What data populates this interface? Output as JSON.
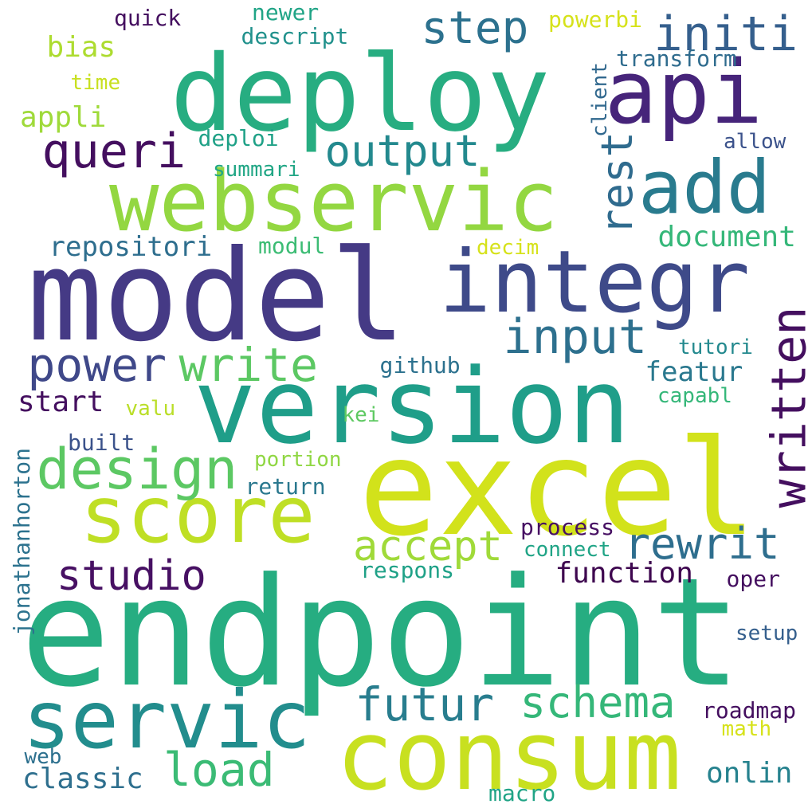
{
  "palette": {
    "deep_purple": "#440154",
    "indigo": "#443983",
    "slate_blue": "#3b528b",
    "steel_blue": "#31688e",
    "teal_blue": "#287c8e",
    "teal": "#21918c",
    "sea_green": "#20a486",
    "green": "#35b779",
    "light_green": "#5ec962",
    "yellow_green": "#90d743",
    "lime": "#c8e020",
    "yellow": "#d6e21b"
  },
  "words": [
    {
      "text": "endpoint",
      "color": "#26ad81"
    },
    {
      "text": "excel",
      "color": "#d2e21b"
    },
    {
      "text": "model",
      "color": "#453a85"
    },
    {
      "text": "version",
      "color": "#1f9e89"
    },
    {
      "text": "deploy",
      "color": "#27ad81"
    },
    {
      "text": "consum",
      "color": "#c8e020"
    },
    {
      "text": "webservic",
      "color": "#93d741"
    },
    {
      "text": "integr",
      "color": "#3e4a89"
    },
    {
      "text": "api",
      "color": "#46247a"
    },
    {
      "text": "servic",
      "color": "#228d8d"
    },
    {
      "text": "score",
      "color": "#bfdf25"
    },
    {
      "text": "add",
      "color": "#297b8e"
    },
    {
      "text": "design",
      "color": "#5cc863"
    },
    {
      "text": "written",
      "color": "#440f5f"
    },
    {
      "text": "step",
      "color": "#2c718e"
    },
    {
      "text": "initi",
      "color": "#355f8d"
    },
    {
      "text": "queri",
      "color": "#440f5f"
    },
    {
      "text": "output",
      "color": "#23898e"
    },
    {
      "text": "rest",
      "color": "#2f6b8e"
    },
    {
      "text": "input",
      "color": "#2d708e"
    },
    {
      "text": "power",
      "color": "#3f4889"
    },
    {
      "text": "write",
      "color": "#5cc863"
    },
    {
      "text": "futur",
      "color": "#287d8e"
    },
    {
      "text": "schema",
      "color": "#35b779"
    },
    {
      "text": "rewrit",
      "color": "#2e6e8e"
    },
    {
      "text": "accept",
      "color": "#a0da39"
    },
    {
      "text": "studio",
      "color": "#471063"
    },
    {
      "text": "load",
      "color": "#3bbb75"
    },
    {
      "text": "function",
      "color": "#3e074f"
    },
    {
      "text": "classic",
      "color": "#2e6f8e"
    },
    {
      "text": "document",
      "color": "#35b779"
    },
    {
      "text": "repositori",
      "color": "#2e6e8e"
    },
    {
      "text": "featur",
      "color": "#2a788e"
    },
    {
      "text": "start",
      "color": "#440f5f"
    },
    {
      "text": "onlin",
      "color": "#26828e"
    },
    {
      "text": "bias",
      "color": "#addc30"
    },
    {
      "text": "appli",
      "color": "#9fda3a"
    },
    {
      "text": "roadmap",
      "color": "#440f5f"
    },
    {
      "text": "jonathanhorton",
      "color": "#2c728e"
    },
    {
      "text": "transform",
      "color": "#2f6c8e"
    },
    {
      "text": "deploi",
      "color": "#1fa187"
    },
    {
      "text": "summari",
      "color": "#21a685"
    },
    {
      "text": "modul",
      "color": "#3cbc74"
    },
    {
      "text": "decim",
      "color": "#d6e21b"
    },
    {
      "text": "github",
      "color": "#2c718e"
    },
    {
      "text": "tutori",
      "color": "#23898e"
    },
    {
      "text": "capabl",
      "color": "#35b779"
    },
    {
      "text": "valu",
      "color": "#bade28"
    },
    {
      "text": "kei",
      "color": "#5ec962"
    },
    {
      "text": "built",
      "color": "#3b528b"
    },
    {
      "text": "portion",
      "color": "#90d743"
    },
    {
      "text": "return",
      "color": "#2a788e"
    },
    {
      "text": "process",
      "color": "#471063"
    },
    {
      "text": "connect",
      "color": "#20a486"
    },
    {
      "text": "respons",
      "color": "#1fa187"
    },
    {
      "text": "oper",
      "color": "#440f5f"
    },
    {
      "text": "setup",
      "color": "#355f8d"
    },
    {
      "text": "math",
      "color": "#d6e21b"
    },
    {
      "text": "web",
      "color": "#2d708e"
    },
    {
      "text": "macro",
      "color": "#20a486"
    },
    {
      "text": "allow",
      "color": "#3b528b"
    },
    {
      "text": "client",
      "color": "#31688e"
    },
    {
      "text": "quick",
      "color": "#440f5f"
    },
    {
      "text": "newer",
      "color": "#20a486"
    },
    {
      "text": "descript",
      "color": "#21918c"
    },
    {
      "text": "powerbi",
      "color": "#d6e21b"
    },
    {
      "text": "time",
      "color": "#c8e020"
    }
  ]
}
